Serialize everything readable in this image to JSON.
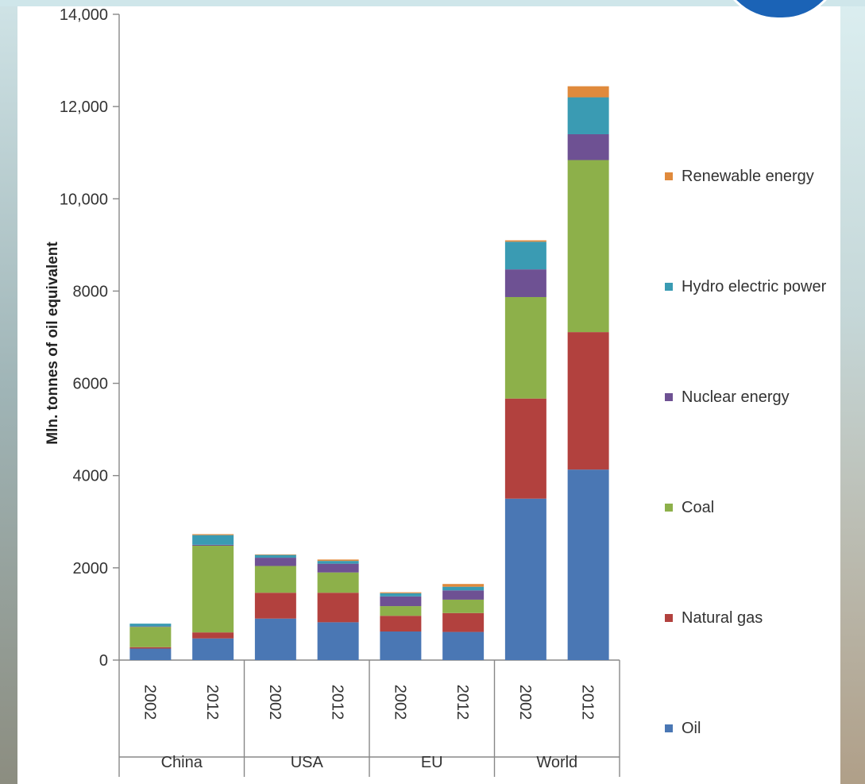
{
  "chart_data": {
    "type": "bar",
    "stacked": true,
    "ylabel": "Mln. tonnes of oil equivalent",
    "ylim": [
      0,
      14000
    ],
    "yticks": [
      {
        "value": 0,
        "label": "0"
      },
      {
        "value": 2000,
        "label": "2000"
      },
      {
        "value": 4000,
        "label": "4000"
      },
      {
        "value": 6000,
        "label": "6000"
      },
      {
        "value": 8000,
        "label": "8000"
      },
      {
        "value": 10000,
        "label": "10,000"
      },
      {
        "value": 12000,
        "label": "12,000"
      },
      {
        "value": 14000,
        "label": "14,000"
      }
    ],
    "categories": [
      "2002",
      "2012",
      "2002",
      "2012",
      "2002",
      "2012",
      "2002",
      "2012"
    ],
    "groups": [
      {
        "name": "China",
        "span": [
          0,
          1
        ]
      },
      {
        "name": "USA",
        "span": [
          2,
          3
        ]
      },
      {
        "name": "EU",
        "span": [
          4,
          5
        ]
      },
      {
        "name": "World",
        "span": [
          6,
          7
        ]
      }
    ],
    "series": [
      {
        "name": "Oil",
        "color": "#4a77b4",
        "values": [
          250,
          470,
          900,
          820,
          620,
          610,
          3500,
          4130
        ]
      },
      {
        "name": "Natural gas",
        "color": "#b2413e",
        "values": [
          30,
          130,
          560,
          640,
          340,
          410,
          2170,
          2980
        ]
      },
      {
        "name": "Coal",
        "color": "#8db04a",
        "values": [
          440,
          1880,
          580,
          440,
          210,
          290,
          2200,
          3730
        ]
      },
      {
        "name": "Nuclear energy",
        "color": "#6e5193",
        "values": [
          10,
          20,
          180,
          190,
          210,
          200,
          600,
          560
        ]
      },
      {
        "name": "Hydro electric power",
        "color": "#3a9bb3",
        "values": [
          60,
          210,
          60,
          60,
          70,
          80,
          600,
          800
        ]
      },
      {
        "name": "Renewable energy",
        "color": "#e08a3c",
        "values": [
          0,
          20,
          10,
          30,
          20,
          60,
          30,
          240
        ]
      }
    ],
    "legend_position": "right",
    "grid": false
  }
}
